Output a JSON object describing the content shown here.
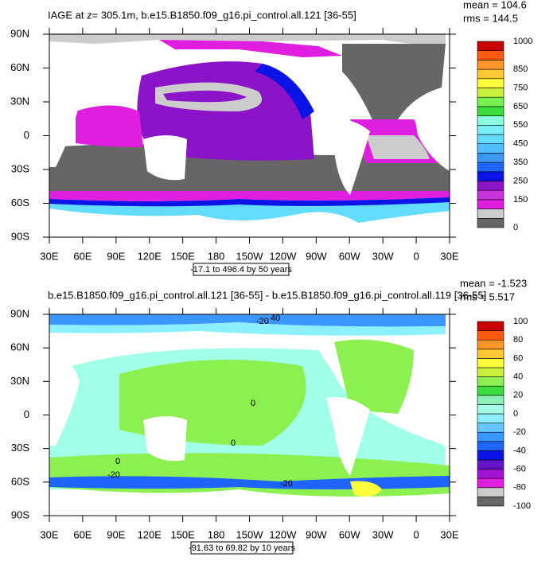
{
  "x_labels": [
    "30E",
    "60E",
    "90E",
    "120E",
    "150E",
    "180",
    "150W",
    "120W",
    "90W",
    "60W",
    "30W",
    "0",
    "30E"
  ],
  "y_labels": [
    "90N",
    "60N",
    "30N",
    "0",
    "30S",
    "60S",
    "90S"
  ],
  "panels": [
    {
      "title": "IAGE at z= 305.1m, b.e15.B1850.f09_g16.pi_control.all.121 [36-55]",
      "mean": "mean = 104.6",
      "rms": "rms = 144.5",
      "range_note": "-17.1 to 496.4 by 50 years",
      "colorbar": {
        "lim": [
          0,
          1000
        ],
        "ticks": [
          1000,
          850,
          750,
          650,
          550,
          450,
          350,
          250,
          150,
          0
        ],
        "colors": [
          "#666666",
          "#cccccc",
          "#e01ee0",
          "#c832dc",
          "#8c14c8",
          "#0a14e6",
          "#1e64ff",
          "#3c96ff",
          "#50beff",
          "#64dcff",
          "#78f0f5",
          "#8cffdc",
          "#3cdc3c",
          "#78f050",
          "#c8f03c",
          "#ffff3c",
          "#ffc832",
          "#ff9628",
          "#ff5a14",
          "#c80000"
        ]
      }
    },
    {
      "title": "b.e15.B1850.f09_g16.pi_control.all.121 [36-55] - b.e15.B1850.f09_g16.pi_control.all.119 [36-55]",
      "mean": "mean = -1.523",
      "rms": "rms = 5.517",
      "range_note": "-91.63 to 69.82 by 10 years",
      "colorbar": {
        "lim": [
          -100,
          100
        ],
        "ticks": [
          100,
          80,
          60,
          40,
          20,
          0,
          -20,
          -40,
          -60,
          -80,
          -100
        ],
        "colors": [
          "#666666",
          "#cccccc",
          "#e01ee0",
          "#a014d2",
          "#6414c8",
          "#0a14e6",
          "#1e64ff",
          "#3c96ff",
          "#64c8ff",
          "#8cf0ff",
          "#a0ffe6",
          "#8cf0b4",
          "#3cdc3c",
          "#8cf050",
          "#c8f03c",
          "#ffff3c",
          "#ffc832",
          "#ff9628",
          "#ff5a14",
          "#c80000"
        ]
      },
      "contour_labels": [
        "40",
        "-20",
        "0",
        "0",
        "0",
        "-20",
        "-20"
      ]
    }
  ]
}
